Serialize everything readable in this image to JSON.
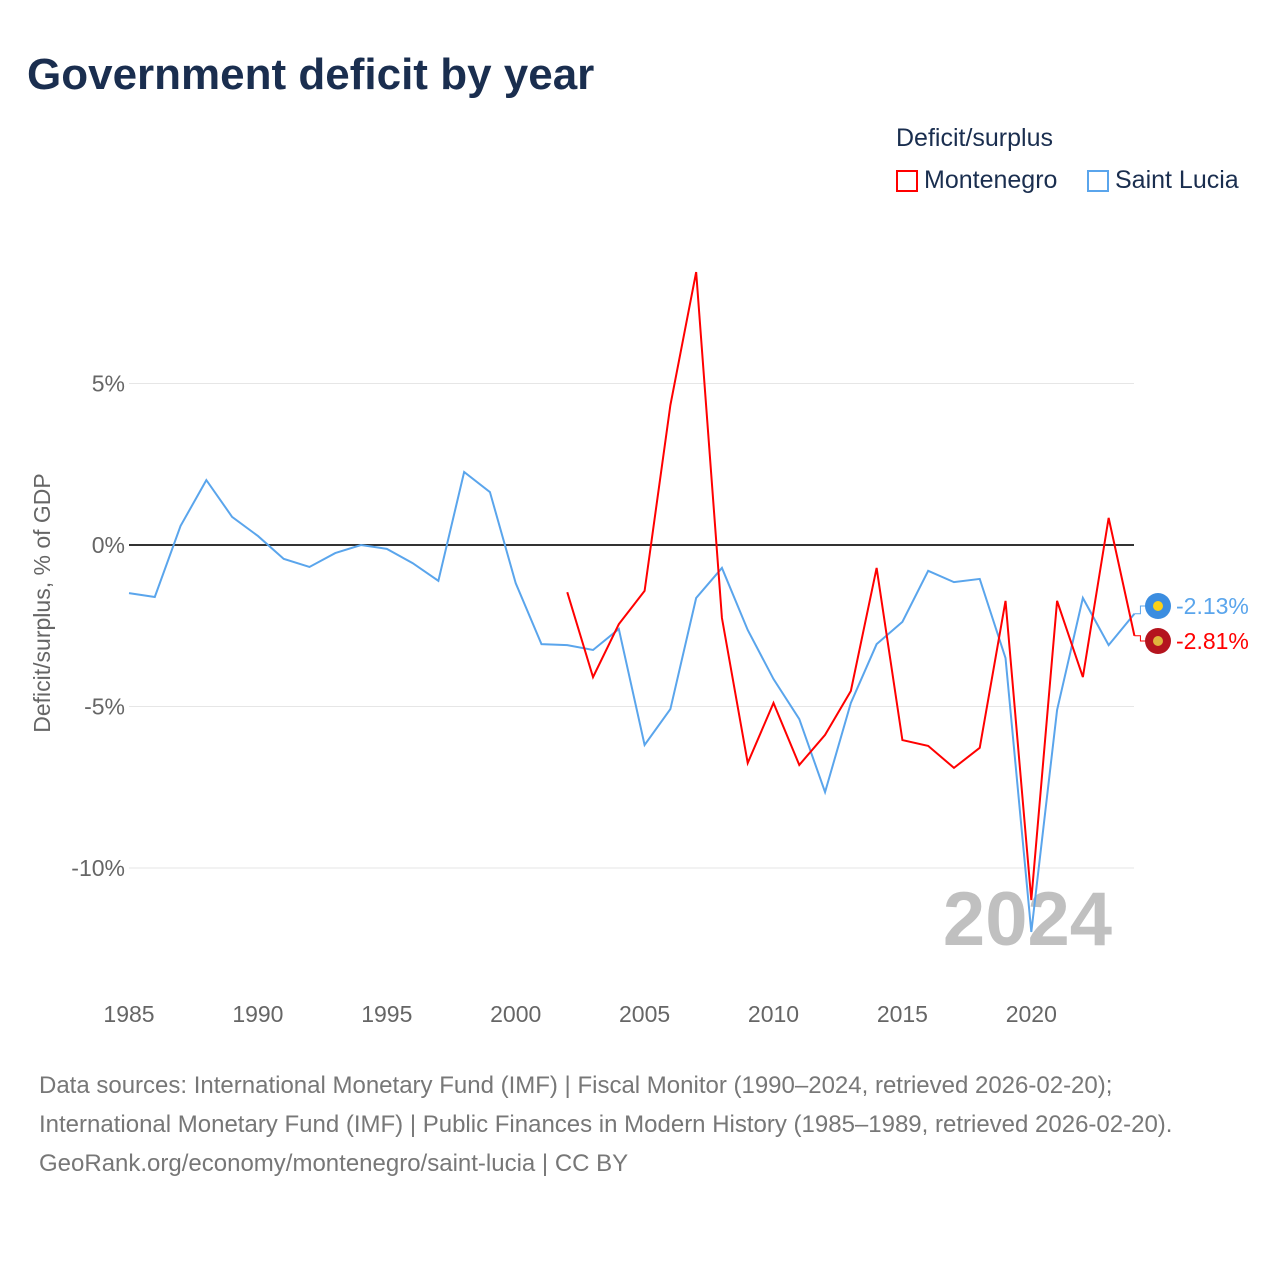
{
  "title": "Government deficit by year",
  "legend": {
    "title": "Deficit/surplus",
    "items": [
      {
        "name": "Montenegro",
        "color": "#ff0000"
      },
      {
        "name": "Saint Lucia",
        "color": "#5aa5ec"
      }
    ]
  },
  "footer": {
    "sources": "Data sources: International Monetary Fund (IMF) | Fiscal Monitor (1990–2024, retrieved 2026-02-20); International Monetary Fund (IMF) | Public Finances in Modern History (1985–1989, retrieved 2026-02-20).",
    "credit": "GeoRank.org/economy/montenegro/saint-lucia | CC BY"
  },
  "chart_data": {
    "type": "line",
    "title": "Government deficit by year",
    "ylabel": "Deficit/surplus, % of GDP",
    "xlabel": "",
    "xlim": [
      1985,
      2024
    ],
    "ylim": [
      -13,
      12
    ],
    "x_ticks": [
      1985,
      1990,
      1995,
      2000,
      2005,
      2010,
      2015,
      2020
    ],
    "y_ticks": [
      {
        "v": 5,
        "label": "5%"
      },
      {
        "v": 0,
        "label": "0%"
      },
      {
        "v": -5,
        "label": "-5%"
      },
      {
        "v": -10,
        "label": "-10%"
      }
    ],
    "year_label": "2024",
    "series": [
      {
        "name": "Montenegro",
        "color": "#ff0000",
        "end_label": "-2.81%",
        "x": [
          2002,
          2003,
          2004,
          2005,
          2006,
          2007,
          2008,
          2009,
          2010,
          2011,
          2012,
          2013,
          2014,
          2015,
          2016,
          2017,
          2018,
          2019,
          2020,
          2021,
          2022,
          2023,
          2024
        ],
        "values": [
          -1.46,
          -4.09,
          -2.45,
          -1.42,
          4.33,
          8.45,
          -2.26,
          -6.75,
          -4.89,
          -6.81,
          -5.88,
          -4.52,
          -0.71,
          -6.04,
          -6.22,
          -6.9,
          -6.28,
          -1.73,
          -10.99,
          -1.73,
          -4.09,
          0.84,
          -2.81
        ]
      },
      {
        "name": "Saint Lucia",
        "color": "#5aa5ec",
        "end_label": "-2.13%",
        "x": [
          1985,
          1986,
          1987,
          1988,
          1989,
          1990,
          1991,
          1992,
          1993,
          1994,
          1995,
          1996,
          1997,
          1998,
          1999,
          2000,
          2001,
          2002,
          2003,
          2004,
          2005,
          2006,
          2007,
          2008,
          2009,
          2010,
          2011,
          2012,
          2013,
          2014,
          2015,
          2016,
          2017,
          2018,
          2019,
          2020,
          2021,
          2022,
          2023,
          2024
        ],
        "values": [
          -1.49,
          -1.61,
          0.59,
          2.01,
          0.87,
          0.28,
          -0.43,
          -0.68,
          -0.25,
          0.0,
          -0.12,
          -0.56,
          -1.11,
          2.26,
          1.64,
          -1.18,
          -3.07,
          -3.1,
          -3.25,
          -2.6,
          -6.19,
          -5.08,
          -1.64,
          -0.71,
          -2.63,
          -4.15,
          -5.39,
          -7.65,
          -4.89,
          -3.07,
          -2.38,
          -0.8,
          -1.15,
          -1.05,
          -3.5,
          -11.98,
          -5.11,
          -1.64,
          -3.1,
          -2.13
        ]
      }
    ]
  }
}
